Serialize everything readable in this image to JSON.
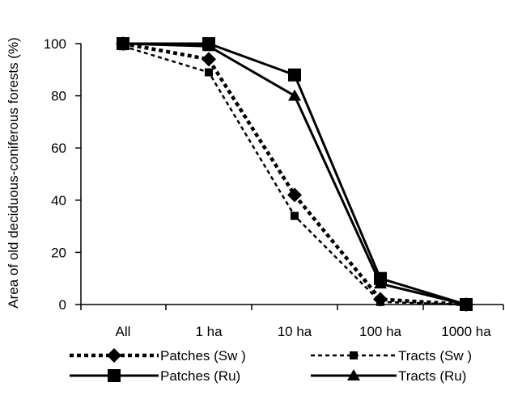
{
  "chart_data": {
    "type": "line",
    "title": "",
    "xlabel": "",
    "ylabel": "Area of old deciduous-coniferous forests (%)",
    "categories": [
      "All",
      "1 ha",
      "10 ha",
      "100 ha",
      "1000 ha"
    ],
    "ylim": [
      0,
      100
    ],
    "yticks": [
      0,
      20,
      40,
      60,
      80,
      100
    ],
    "grid": false,
    "legend_position": "bottom",
    "series": [
      {
        "name": "Patches (Sw )",
        "values": [
          100,
          94,
          42,
          2,
          0
        ],
        "line": "dashed-thick",
        "marker": "diamond"
      },
      {
        "name": "Tracts (Sw )",
        "values": [
          99,
          89,
          34,
          1,
          0
        ],
        "line": "dashed-thin",
        "marker": "square-small"
      },
      {
        "name": "Patches (Ru)",
        "values": [
          100,
          100,
          88,
          10,
          0
        ],
        "line": "solid",
        "marker": "square-large"
      },
      {
        "name": "Tracts (Ru)",
        "values": [
          100,
          99,
          80,
          8,
          0
        ],
        "line": "solid",
        "marker": "triangle"
      }
    ]
  }
}
